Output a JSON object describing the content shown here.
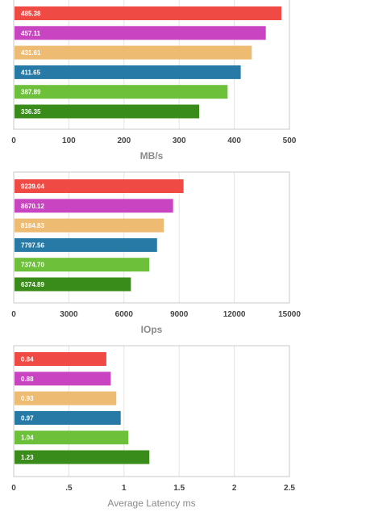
{
  "chart_data": [
    {
      "type": "bar",
      "orientation": "horizontal",
      "xlabel": "MB/s",
      "xlim": [
        0,
        500
      ],
      "ticks": [
        "0",
        "100",
        "200",
        "300",
        "400",
        "500"
      ],
      "tick_values": [
        0,
        100,
        200,
        300,
        400,
        500
      ],
      "grid": true,
      "values": [
        485.38,
        457.11,
        431.61,
        411.65,
        387.89,
        336.35
      ],
      "labels": [
        "485.38",
        "457.11",
        "431.61",
        "411.65",
        "387.89",
        "336.35"
      ],
      "colors": [
        "#f04a45",
        "#c944c0",
        "#eebb72",
        "#2779a6",
        "#6cc03a",
        "#3a8c1a"
      ]
    },
    {
      "type": "bar",
      "orientation": "horizontal",
      "xlabel": "IOps",
      "xlim": [
        0,
        15000
      ],
      "ticks": [
        "0",
        "3000",
        "6000",
        "9000",
        "12000",
        "15000"
      ],
      "tick_values": [
        0,
        3000,
        6000,
        9000,
        12000,
        15000
      ],
      "grid": true,
      "values": [
        9239.04,
        8670.12,
        8164.83,
        7797.56,
        7374.7,
        6374.89
      ],
      "labels": [
        "9239.04",
        "8670.12",
        "8164.83",
        "7797.56",
        "7374.70",
        "6374.89"
      ],
      "colors": [
        "#f04a45",
        "#c944c0",
        "#eebb72",
        "#2779a6",
        "#6cc03a",
        "#3a8c1a"
      ]
    },
    {
      "type": "bar",
      "orientation": "horizontal",
      "xlabel": "Average Latency ms",
      "xlim": [
        0,
        2.5
      ],
      "ticks": [
        "0",
        ".5",
        "1",
        "1.5",
        "2",
        "2.5"
      ],
      "tick_values": [
        0,
        0.5,
        1,
        1.5,
        2,
        2.5
      ],
      "grid": true,
      "values": [
        0.84,
        0.88,
        0.93,
        0.97,
        1.04,
        1.23
      ],
      "labels": [
        "0.84",
        "0.88",
        "0.93",
        "0.97",
        "1.04",
        "1.23"
      ],
      "colors": [
        "#f04a45",
        "#c944c0",
        "#eebb72",
        "#2779a6",
        "#6cc03a",
        "#3a8c1a"
      ]
    }
  ]
}
